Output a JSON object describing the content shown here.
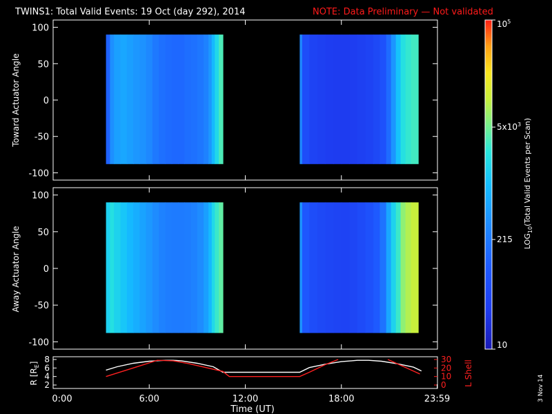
{
  "header": {
    "title": "TWINS1: Total Valid Events: 19 Oct (day 292), 2014",
    "note": "NOTE: Data Preliminary — Not validated"
  },
  "side_stamp": "3 Nov 14",
  "colors": {
    "background": "#000000",
    "axis": "#ffffff",
    "note": "#ff1a1a",
    "lshell": "#ff2020",
    "radius": "#ffffff"
  },
  "chart_data": [
    {
      "type": "heatmap",
      "panel": "top",
      "ylabel": "Toward Actuator Angle",
      "ylim": [
        -110,
        110
      ],
      "y_ticks": [
        -100,
        -50,
        0,
        50,
        100
      ],
      "y_tick_labels": [
        "-100",
        "-50",
        "0",
        "50",
        "100"
      ],
      "xlim": [
        0,
        24
      ],
      "data_y_range": [
        -88,
        90
      ],
      "blocks": [
        {
          "x_start": 3.3,
          "x_end": 10.6,
          "columns": [
            {
              "x": 3.3,
              "value": 120
            },
            {
              "x": 3.55,
              "value": 350
            },
            {
              "x": 3.8,
              "value": 520
            },
            {
              "x": 4.2,
              "value": 600
            },
            {
              "x": 4.6,
              "value": 500
            },
            {
              "x": 5.0,
              "value": 420
            },
            {
              "x": 5.4,
              "value": 380
            },
            {
              "x": 5.8,
              "value": 300
            },
            {
              "x": 6.2,
              "value": 210
            },
            {
              "x": 6.6,
              "value": 170
            },
            {
              "x": 7.0,
              "value": 150
            },
            {
              "x": 7.4,
              "value": 140
            },
            {
              "x": 7.8,
              "value": 140
            },
            {
              "x": 8.2,
              "value": 160
            },
            {
              "x": 8.6,
              "value": 175
            },
            {
              "x": 9.0,
              "value": 200
            },
            {
              "x": 9.4,
              "value": 260
            },
            {
              "x": 9.7,
              "value": 420
            },
            {
              "x": 9.9,
              "value": 900
            },
            {
              "x": 10.1,
              "value": 1800
            },
            {
              "x": 10.35,
              "value": 3500
            }
          ]
        },
        {
          "x_start": 15.4,
          "x_end": 22.8,
          "columns": [
            {
              "x": 15.4,
              "value": 300
            },
            {
              "x": 15.55,
              "value": 60
            },
            {
              "x": 16.0,
              "value": 40
            },
            {
              "x": 16.5,
              "value": 35
            },
            {
              "x": 17.0,
              "value": 32
            },
            {
              "x": 17.5,
              "value": 30
            },
            {
              "x": 18.0,
              "value": 30
            },
            {
              "x": 18.5,
              "value": 32
            },
            {
              "x": 19.0,
              "value": 35
            },
            {
              "x": 19.5,
              "value": 40
            },
            {
              "x": 20.0,
              "value": 50
            },
            {
              "x": 20.4,
              "value": 70
            },
            {
              "x": 20.8,
              "value": 150
            },
            {
              "x": 21.1,
              "value": 400
            },
            {
              "x": 21.4,
              "value": 1100
            },
            {
              "x": 21.7,
              "value": 2200
            },
            {
              "x": 22.0,
              "value": 2800
            },
            {
              "x": 22.35,
              "value": 3200
            }
          ]
        }
      ]
    },
    {
      "type": "heatmap",
      "panel": "bottom",
      "ylabel": "Away Actuator Angle",
      "ylim": [
        -110,
        110
      ],
      "y_ticks": [
        -100,
        -50,
        0,
        50,
        100
      ],
      "y_tick_labels": [
        "-100",
        "-50",
        "0",
        "50",
        "100"
      ],
      "xlim": [
        0,
        24
      ],
      "data_y_range": [
        -88,
        90
      ],
      "blocks": [
        {
          "x_start": 3.3,
          "x_end": 10.6,
          "columns": [
            {
              "x": 3.3,
              "value": 1500
            },
            {
              "x": 3.55,
              "value": 2200
            },
            {
              "x": 3.8,
              "value": 1600
            },
            {
              "x": 4.2,
              "value": 1200
            },
            {
              "x": 4.6,
              "value": 900
            },
            {
              "x": 5.0,
              "value": 700
            },
            {
              "x": 5.4,
              "value": 550
            },
            {
              "x": 5.8,
              "value": 430
            },
            {
              "x": 6.2,
              "value": 330
            },
            {
              "x": 6.6,
              "value": 260
            },
            {
              "x": 7.0,
              "value": 230
            },
            {
              "x": 7.4,
              "value": 220
            },
            {
              "x": 7.8,
              "value": 220
            },
            {
              "x": 8.2,
              "value": 230
            },
            {
              "x": 8.6,
              "value": 260
            },
            {
              "x": 9.0,
              "value": 330
            },
            {
              "x": 9.4,
              "value": 500
            },
            {
              "x": 9.7,
              "value": 900
            },
            {
              "x": 9.9,
              "value": 1800
            },
            {
              "x": 10.1,
              "value": 3000
            },
            {
              "x": 10.35,
              "value": 4200
            }
          ]
        },
        {
          "x_start": 15.4,
          "x_end": 22.8,
          "columns": [
            {
              "x": 15.4,
              "value": 400
            },
            {
              "x": 15.55,
              "value": 90
            },
            {
              "x": 16.0,
              "value": 60
            },
            {
              "x": 16.5,
              "value": 50
            },
            {
              "x": 17.0,
              "value": 45
            },
            {
              "x": 17.5,
              "value": 42
            },
            {
              "x": 18.0,
              "value": 40
            },
            {
              "x": 18.5,
              "value": 45
            },
            {
              "x": 19.0,
              "value": 55
            },
            {
              "x": 19.5,
              "value": 70
            },
            {
              "x": 20.0,
              "value": 100
            },
            {
              "x": 20.4,
              "value": 180
            },
            {
              "x": 20.8,
              "value": 600
            },
            {
              "x": 21.1,
              "value": 1600
            },
            {
              "x": 21.4,
              "value": 3000
            },
            {
              "x": 21.7,
              "value": 6500
            },
            {
              "x": 22.0,
              "value": 9000
            },
            {
              "x": 22.35,
              "value": 11000
            }
          ]
        }
      ]
    },
    {
      "type": "line",
      "panel": "orbit",
      "xlabel": "Time (UT)",
      "xlim": [
        0,
        24
      ],
      "x_tick_labels": [
        "0:00",
        "6:00",
        "12:00",
        "18:00",
        "23:59"
      ],
      "x_ticks": [
        0,
        6,
        12,
        18,
        23.98
      ],
      "left_axis": {
        "label": "R [R",
        "label_sub": "E",
        "label_end": "]",
        "ylim": [
          2,
          8
        ],
        "ticks": [
          2,
          4,
          6,
          8
        ]
      },
      "right_axis": {
        "label": "L Shell",
        "ylim": [
          0,
          30
        ],
        "ticks": [
          0,
          10,
          20,
          30
        ]
      },
      "series": [
        {
          "axis": "left",
          "x": [
            3.3,
            4,
            5,
            6,
            7,
            7.5,
            8,
            9,
            10,
            10.6,
            12,
            14,
            15.4,
            16,
            17,
            18,
            19,
            19.7,
            20.5,
            21.5,
            22.5,
            23
          ],
          "values": [
            5.5,
            6.3,
            7.1,
            7.6,
            7.8,
            7.8,
            7.7,
            7.1,
            6.3,
            5.0,
            5.0,
            5.0,
            5.0,
            6.1,
            6.9,
            7.5,
            7.8,
            7.8,
            7.6,
            7.0,
            6.2,
            5.3
          ]
        },
        {
          "axis": "right",
          "x": [
            3.3,
            5,
            6.5,
            7.5,
            8.5,
            10.6,
            11,
            15.4,
            16,
            17,
            17.8,
            18,
            19.8,
            20.9,
            22.9
          ],
          "values": [
            10,
            20,
            29,
            28.5,
            25,
            16,
            10,
            10,
            15,
            24,
            30,
            null,
            null,
            30,
            13
          ]
        }
      ]
    },
    {
      "type": "colorbar",
      "label": "LOG",
      "label_sub": "10",
      "label_rest": "(Total Valid Events per Scan)",
      "scale": "log",
      "range": [
        10,
        100000
      ],
      "ticks": [
        {
          "value": 10,
          "label": "10"
        },
        {
          "value": 215,
          "label": "215"
        },
        {
          "value": 5000,
          "label": "5x10",
          "sup": "3"
        },
        {
          "value": 100000,
          "label": "10",
          "sup": "5"
        }
      ]
    }
  ]
}
